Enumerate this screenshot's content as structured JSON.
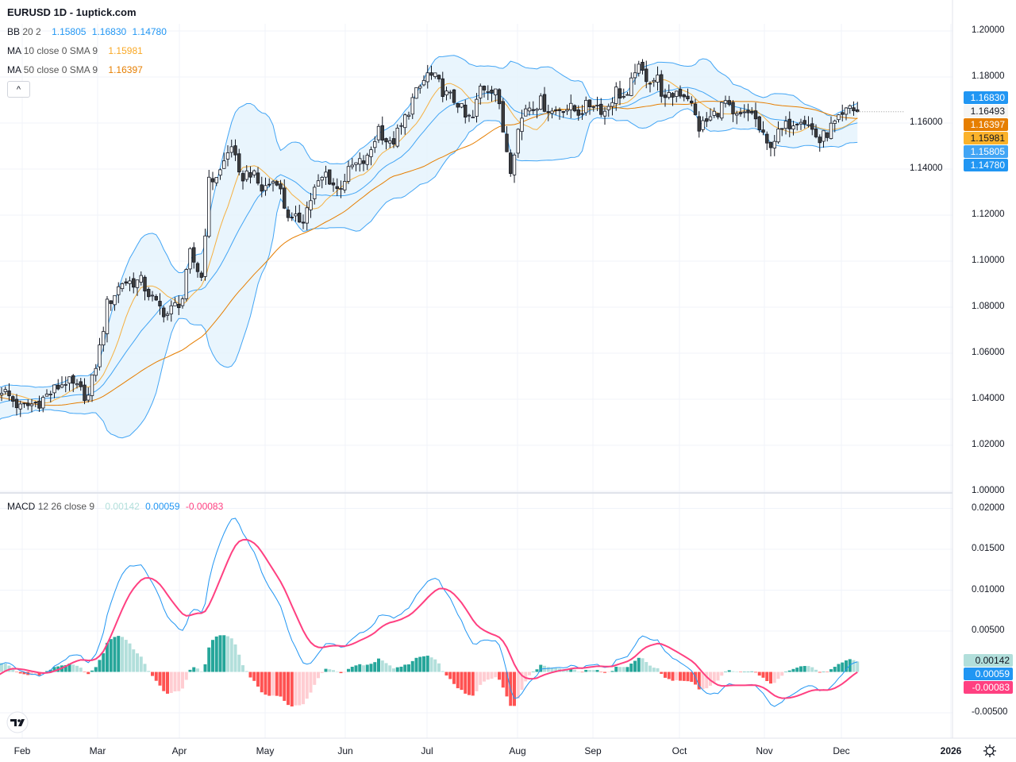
{
  "header": {
    "title": "EURUSD 1D - 1uptick.com"
  },
  "legends": {
    "bb": {
      "name": "BB",
      "params": "20 2",
      "basis": "1.15805",
      "upper": "1.16830",
      "lower": "1.14780"
    },
    "ma10": {
      "name": "MA",
      "params": "10 close 0 SMA 9",
      "value": "1.15981"
    },
    "ma50": {
      "name": "MA",
      "params": "50 close 0 SMA 9",
      "value": "1.16397"
    },
    "macd": {
      "name": "MACD",
      "params": "12 26 close 9",
      "hist": "0.00142",
      "macd": "0.00059",
      "signal": "-0.00083"
    },
    "collapse_icon": "chevron-up-icon",
    "collapse_glyph": "^"
  },
  "price_badges": [
    {
      "label": "1.16830",
      "bg": "#2196f3",
      "fg": "#ffffff"
    },
    {
      "label": "1.16493",
      "bg": "#f5f5f5",
      "fg": "#131722"
    },
    {
      "label": "1.16397",
      "bg": "#e67e00",
      "fg": "#ffffff"
    },
    {
      "label": "1.15981",
      "bg": "#fbb22b",
      "fg": "#131722"
    },
    {
      "label": "1.15805",
      "bg": "#42a5f5",
      "fg": "#ffffff"
    },
    {
      "label": "1.14780",
      "bg": "#2196f3",
      "fg": "#ffffff"
    }
  ],
  "macd_badges": [
    {
      "label": "0.00142",
      "bg": "#b2dfdb",
      "fg": "#131722"
    },
    {
      "label": "0.00059",
      "bg": "#2196f3",
      "fg": "#ffffff"
    },
    {
      "label": "-0.00083",
      "bg": "#ff4081",
      "fg": "#ffffff"
    }
  ],
  "colors": {
    "bb_line": "#42a5f5",
    "bb_fill": "#e3f2fd",
    "ma10": "#f5b041",
    "ma50": "#e67e00",
    "macd": "#2196f3",
    "signal": "#ff4081",
    "hist_up": "#26a69a",
    "hist_up_weak": "#b2dfdb",
    "hist_down": "#ff5252",
    "hist_down_weak": "#ffcdd2"
  },
  "chart_data": {
    "type": "candlestick",
    "symbol": "EURUSD",
    "interval": "1D",
    "price_axis": {
      "range": [
        1.0,
        1.2
      ],
      "ticks": [
        "1.20000",
        "1.18000",
        "1.16000",
        "1.14000",
        "1.12000",
        "1.10000",
        "1.08000",
        "1.06000",
        "1.04000",
        "1.02000",
        "1.00000"
      ]
    },
    "macd_axis": {
      "range": [
        -0.0075,
        0.0215
      ],
      "ticks": [
        "0.02000",
        "0.01500",
        "0.01000",
        "0.00500",
        "-0.00500"
      ]
    },
    "time_axis": [
      "Feb",
      "Mar",
      "Apr",
      "May",
      "Jun",
      "Jul",
      "Aug",
      "Sep",
      "Oct",
      "Nov",
      "Dec",
      "2026"
    ],
    "last_close": 1.16493,
    "close_anchors_note": "bar index (0 = first visible trading day, late Jan) and approximate close",
    "close_anchors": [
      [
        -70,
        1.085
      ],
      [
        -45,
        1.055
      ],
      [
        -25,
        1.03
      ],
      [
        -8,
        1.038
      ],
      [
        0,
        1.0445
      ],
      [
        5,
        1.036
      ],
      [
        10,
        1.039
      ],
      [
        17,
        1.048
      ],
      [
        23,
        1.041
      ],
      [
        26,
        1.062
      ],
      [
        28,
        1.081
      ],
      [
        32,
        1.091
      ],
      [
        37,
        1.091
      ],
      [
        41,
        1.081
      ],
      [
        44,
        1.077
      ],
      [
        48,
        1.084
      ],
      [
        50,
        1.103
      ],
      [
        53,
        1.093
      ],
      [
        55,
        1.134
      ],
      [
        58,
        1.139
      ],
      [
        61,
        1.151
      ],
      [
        63,
        1.136
      ],
      [
        66,
        1.139
      ],
      [
        69,
        1.131
      ],
      [
        73,
        1.136
      ],
      [
        75,
        1.124
      ],
      [
        77,
        1.117
      ],
      [
        80,
        1.119
      ],
      [
        83,
        1.131
      ],
      [
        86,
        1.138
      ],
      [
        89,
        1.131
      ],
      [
        93,
        1.141
      ],
      [
        97,
        1.144
      ],
      [
        100,
        1.158
      ],
      [
        103,
        1.15
      ],
      [
        106,
        1.158
      ],
      [
        109,
        1.17
      ],
      [
        113,
        1.181
      ],
      [
        115,
        1.179
      ],
      [
        118,
        1.172
      ],
      [
        121,
        1.169
      ],
      [
        123,
        1.162
      ],
      [
        125,
        1.162
      ],
      [
        127,
        1.1755
      ],
      [
        131,
        1.1755
      ],
      [
        133,
        1.1566
      ],
      [
        135,
        1.141
      ],
      [
        137,
        1.157
      ],
      [
        139,
        1.167
      ],
      [
        143,
        1.169
      ],
      [
        146,
        1.165
      ],
      [
        149,
        1.167
      ],
      [
        153,
        1.165
      ],
      [
        157,
        1.169
      ],
      [
        160,
        1.165
      ],
      [
        163,
        1.174
      ],
      [
        166,
        1.17
      ],
      [
        168,
        1.184
      ],
      [
        172,
        1.179
      ],
      [
        174,
        1.179
      ],
      [
        176,
        1.169
      ],
      [
        179,
        1.174
      ],
      [
        182,
        1.172
      ],
      [
        185,
        1.158
      ],
      [
        188,
        1.162
      ],
      [
        192,
        1.169
      ],
      [
        194,
        1.162
      ],
      [
        197,
        1.163
      ],
      [
        199,
        1.165
      ],
      [
        201,
        1.157
      ],
      [
        203,
        1.15
      ],
      [
        206,
        1.155
      ],
      [
        209,
        1.16
      ],
      [
        212,
        1.163
      ],
      [
        215,
        1.157
      ],
      [
        217,
        1.152
      ],
      [
        220,
        1.158
      ],
      [
        223,
        1.162
      ],
      [
        225,
        1.167
      ],
      [
        227,
        1.16493
      ]
    ],
    "indicators": [
      "Bollinger Bands (20, 2)",
      "SMA 10",
      "SMA 50",
      "MACD (12, 26, 9)"
    ]
  }
}
